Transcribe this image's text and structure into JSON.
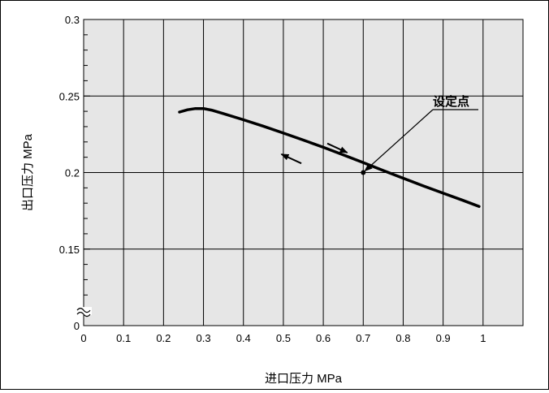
{
  "chart_data": {
    "type": "line",
    "title": "",
    "xlabel": "进口压力 MPa",
    "ylabel": "出口压力 MPa",
    "xlim": [
      0,
      1.1
    ],
    "ylim": [
      0.1,
      0.3
    ],
    "y_axis_break": true,
    "grid": true,
    "x_ticks": [
      {
        "value": 0,
        "label": "0"
      },
      {
        "value": 0.1,
        "label": "0.1"
      },
      {
        "value": 0.2,
        "label": "0.2"
      },
      {
        "value": 0.3,
        "label": "0.3"
      },
      {
        "value": 0.4,
        "label": "0.4"
      },
      {
        "value": 0.5,
        "label": "0.5"
      },
      {
        "value": 0.6,
        "label": "0.6"
      },
      {
        "value": 0.7,
        "label": "0.7"
      },
      {
        "value": 0.8,
        "label": "0.8"
      },
      {
        "value": 0.9,
        "label": "0.9"
      },
      {
        "value": 1.0,
        "label": "1"
      }
    ],
    "y_ticks": [
      {
        "value": 0.1,
        "label": "0"
      },
      {
        "value": 0.15,
        "label": "0.15"
      },
      {
        "value": 0.2,
        "label": "0.2"
      },
      {
        "value": 0.25,
        "label": "0.25"
      },
      {
        "value": 0.3,
        "label": "0.3"
      }
    ],
    "series": [
      {
        "x": [
          0.24,
          0.26,
          0.28,
          0.3,
          0.32,
          0.35,
          0.4,
          0.45,
          0.5,
          0.55,
          0.6,
          0.65,
          0.7,
          0.75,
          0.8,
          0.85,
          0.9,
          0.95,
          0.99
        ],
        "y": [
          0.2395,
          0.241,
          0.2418,
          0.2418,
          0.2408,
          0.2385,
          0.2345,
          0.2303,
          0.2258,
          0.2212,
          0.2165,
          0.2115,
          0.2065,
          0.2013,
          0.1963,
          0.1913,
          0.1865,
          0.1818,
          0.1778
        ]
      }
    ],
    "annotations": [
      {
        "text": "设定点",
        "x": 0.7,
        "y": 0.2
      }
    ],
    "hysteresis_arrows": [
      {
        "direction": "increasing",
        "from": [
          0.61,
          0.219
        ],
        "to": [
          0.66,
          0.213
        ]
      },
      {
        "direction": "decreasing",
        "from": [
          0.545,
          0.206
        ],
        "to": [
          0.495,
          0.212
        ]
      }
    ]
  }
}
